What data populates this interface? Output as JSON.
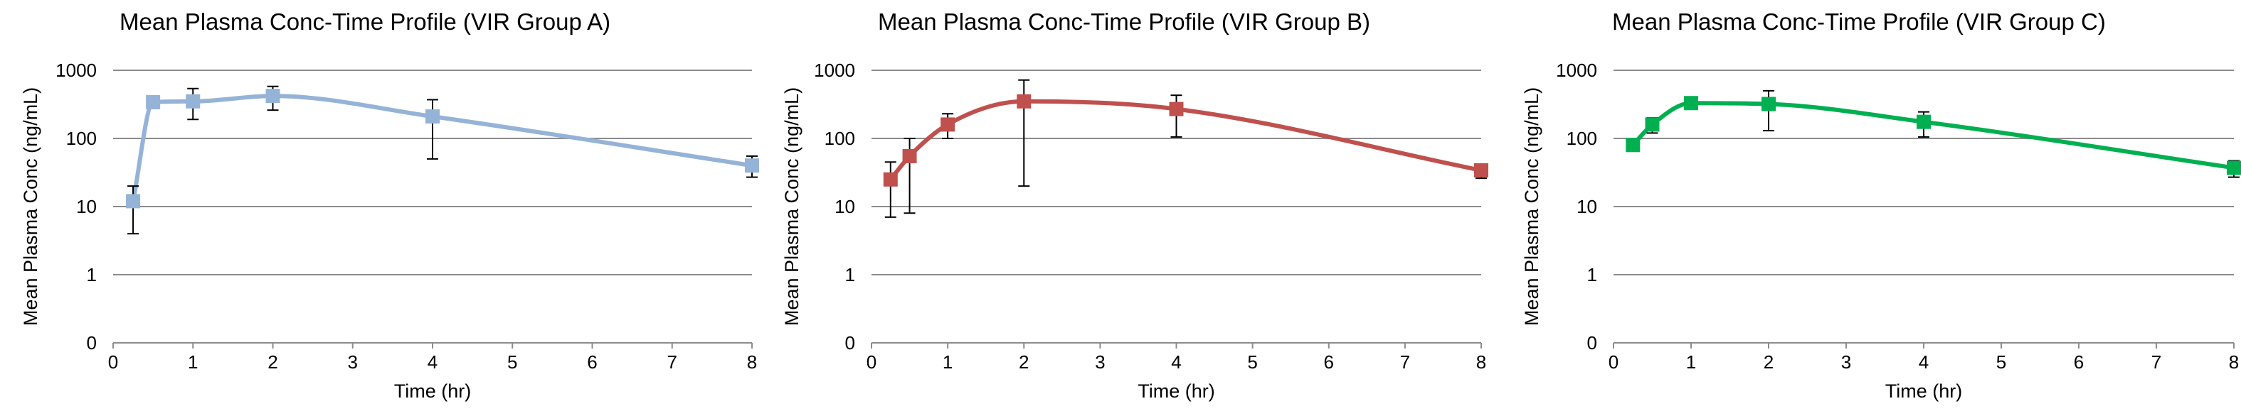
{
  "chart_data": [
    {
      "type": "line",
      "title": "Mean Plasma Conc-Time Profile (VIR Group A)",
      "xlabel": "Time (hr)",
      "ylabel": "Mean Plasma Conc (ng/mL)",
      "x_ticks": [
        "0",
        "1",
        "2",
        "3",
        "4",
        "5",
        "6",
        "7",
        "8"
      ],
      "y_ticks": [
        "0",
        "1",
        "10",
        "100",
        "1000"
      ],
      "xlim": [
        0,
        8
      ],
      "y_scale": "log",
      "grid": "horizontal",
      "color": "#95b3d7",
      "series": [
        {
          "x": [
            0.25,
            0.5,
            1,
            2,
            4,
            8
          ],
          "values": [
            12,
            340,
            350,
            420,
            210,
            40
          ],
          "error_low": [
            4,
            300,
            190,
            260,
            50,
            27
          ],
          "error_high": [
            20,
            380,
            540,
            580,
            370,
            55
          ]
        }
      ]
    },
    {
      "type": "line",
      "title": "Mean Plasma Conc-Time Profile (VIR Group B)",
      "xlabel": "Time (hr)",
      "ylabel": "Mean Plasma Conc (ng/mL)",
      "x_ticks": [
        "0",
        "1",
        "2",
        "3",
        "4",
        "5",
        "6",
        "7",
        "8"
      ],
      "y_ticks": [
        "0",
        "1",
        "10",
        "100",
        "1000"
      ],
      "xlim": [
        0,
        8
      ],
      "y_scale": "log",
      "grid": "horizontal",
      "color": "#c0504d",
      "series": [
        {
          "x": [
            0.25,
            0.5,
            1,
            2,
            4,
            8
          ],
          "values": [
            25,
            55,
            160,
            350,
            270,
            34
          ],
          "error_low": [
            7,
            8,
            100,
            20,
            105,
            26
          ],
          "error_high": [
            45,
            100,
            230,
            720,
            430,
            42
          ]
        }
      ]
    },
    {
      "type": "line",
      "title": "Mean Plasma Conc-Time Profile (VIR Group C)",
      "xlabel": "Time (hr)",
      "ylabel": "Mean Plasma Conc (ng/mL)",
      "x_ticks": [
        "0",
        "1",
        "2",
        "3",
        "4",
        "5",
        "6",
        "7",
        "8"
      ],
      "y_ticks": [
        "0",
        "1",
        "10",
        "100",
        "1000"
      ],
      "xlim": [
        0,
        8
      ],
      "y_scale": "log",
      "grid": "horizontal",
      "color": "#00b050",
      "series": [
        {
          "x": [
            0.25,
            0.5,
            1,
            2,
            4,
            8
          ],
          "values": [
            80,
            160,
            330,
            320,
            175,
            37
          ],
          "error_low": [
            72,
            120,
            290,
            130,
            105,
            27
          ],
          "error_high": [
            88,
            200,
            380,
            500,
            245,
            47
          ]
        }
      ]
    }
  ]
}
